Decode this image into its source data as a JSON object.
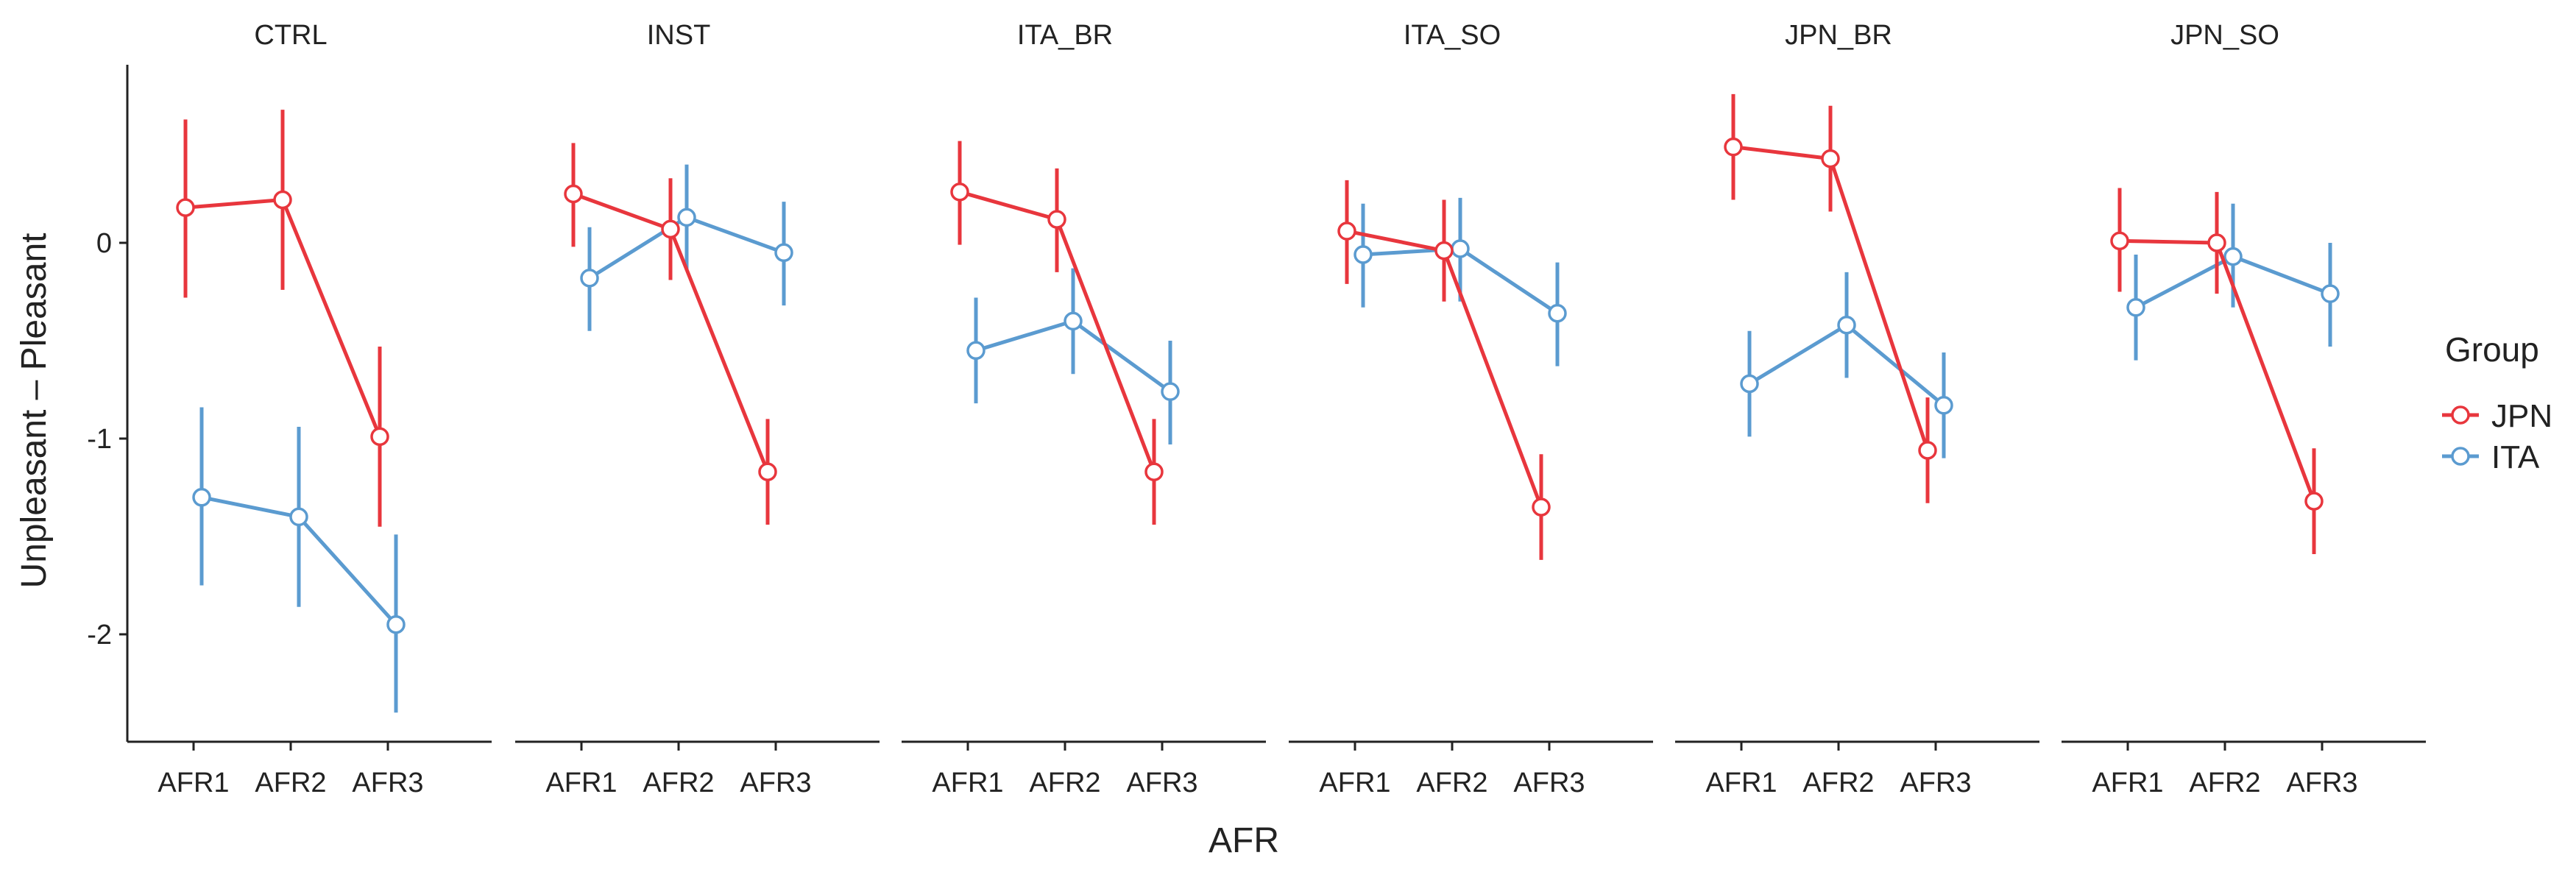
{
  "chart_data": {
    "type": "line",
    "xlabel": "AFR",
    "ylabel": "Unpleasant – Pleasant",
    "ylim": [
      -2.55,
      0.95
    ],
    "yticks": [
      -2,
      -1,
      0
    ],
    "ytick_labels": [
      "-2",
      "-1",
      "0"
    ],
    "categories": [
      "AFR1",
      "AFR2",
      "AFR3"
    ],
    "legend": {
      "title": "Group",
      "position": "right",
      "entries": [
        {
          "name": "JPN",
          "color": "#e8363d"
        },
        {
          "name": "ITA",
          "color": "#5b9bd0"
        }
      ]
    },
    "panels": [
      {
        "title": "CTRL",
        "series": [
          {
            "name": "JPN",
            "values": [
              0.18,
              0.22,
              -0.99
            ],
            "lower": [
              -0.28,
              -0.24,
              -1.45
            ],
            "upper": [
              0.63,
              0.68,
              -0.53
            ]
          },
          {
            "name": "ITA",
            "values": [
              -1.3,
              -1.4,
              -1.95
            ],
            "lower": [
              -1.75,
              -1.86,
              -2.4
            ],
            "upper": [
              -0.84,
              -0.94,
              -1.49
            ]
          }
        ]
      },
      {
        "title": "INST",
        "series": [
          {
            "name": "JPN",
            "values": [
              0.25,
              0.07,
              -1.17
            ],
            "lower": [
              -0.02,
              -0.19,
              -1.44
            ],
            "upper": [
              0.51,
              0.33,
              -0.9
            ]
          },
          {
            "name": "ITA",
            "values": [
              -0.18,
              0.13,
              -0.05
            ],
            "lower": [
              -0.45,
              -0.14,
              -0.32
            ],
            "upper": [
              0.08,
              0.4,
              0.21
            ]
          }
        ]
      },
      {
        "title": "ITA_BR",
        "series": [
          {
            "name": "JPN",
            "values": [
              0.26,
              0.12,
              -1.17
            ],
            "lower": [
              -0.01,
              -0.15,
              -1.44
            ],
            "upper": [
              0.52,
              0.38,
              -0.9
            ]
          },
          {
            "name": "ITA",
            "values": [
              -0.55,
              -0.4,
              -0.76
            ],
            "lower": [
              -0.82,
              -0.67,
              -1.03
            ],
            "upper": [
              -0.28,
              -0.13,
              -0.5
            ]
          }
        ]
      },
      {
        "title": "ITA_SO",
        "series": [
          {
            "name": "JPN",
            "values": [
              0.06,
              -0.04,
              -1.35
            ],
            "lower": [
              -0.21,
              -0.3,
              -1.62
            ],
            "upper": [
              0.32,
              0.22,
              -1.08
            ]
          },
          {
            "name": "ITA",
            "values": [
              -0.06,
              -0.03,
              -0.36
            ],
            "lower": [
              -0.33,
              -0.3,
              -0.63
            ],
            "upper": [
              0.2,
              0.23,
              -0.1
            ]
          }
        ]
      },
      {
        "title": "JPN_BR",
        "series": [
          {
            "name": "JPN",
            "values": [
              0.49,
              0.43,
              -1.06
            ],
            "lower": [
              0.22,
              0.16,
              -1.33
            ],
            "upper": [
              0.76,
              0.7,
              -0.79
            ]
          },
          {
            "name": "ITA",
            "values": [
              -0.72,
              -0.42,
              -0.83
            ],
            "lower": [
              -0.99,
              -0.69,
              -1.1
            ],
            "upper": [
              -0.45,
              -0.15,
              -0.56
            ]
          }
        ]
      },
      {
        "title": "JPN_SO",
        "series": [
          {
            "name": "JPN",
            "values": [
              0.01,
              0.0,
              -1.32
            ],
            "lower": [
              -0.25,
              -0.26,
              -1.59
            ],
            "upper": [
              0.28,
              0.26,
              -1.05
            ]
          },
          {
            "name": "ITA",
            "values": [
              -0.33,
              -0.07,
              -0.26
            ],
            "lower": [
              -0.6,
              -0.33,
              -0.53
            ],
            "upper": [
              -0.06,
              0.2,
              0.0
            ]
          }
        ]
      }
    ]
  }
}
